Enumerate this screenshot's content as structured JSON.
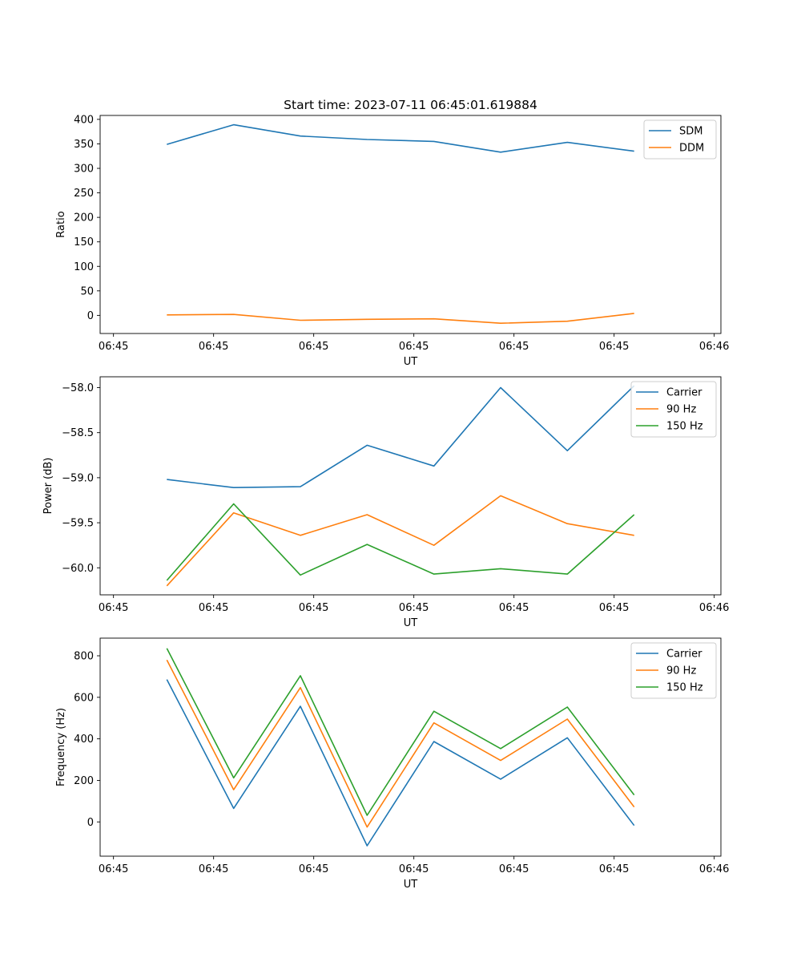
{
  "figure_title": "Start time: 2023-07-11 06:45:01.619884",
  "chart_data": [
    {
      "type": "line",
      "title": "Start time: 2023-07-11 06:45:01.619884",
      "xlabel": "UT",
      "ylabel": "Ratio",
      "x": [
        1,
        2,
        3,
        4,
        5,
        6,
        7,
        8
      ],
      "xlim": [
        0,
        9.3
      ],
      "xticks": [
        0.2,
        1.7,
        3.2,
        4.7,
        6.2,
        7.7,
        9.2
      ],
      "xtick_labels": [
        "06:45",
        "06:45",
        "06:45",
        "06:45",
        "06:45",
        "06:45",
        "06:46"
      ],
      "ylim": [
        -37,
        408
      ],
      "yticks": [
        0,
        50,
        100,
        150,
        200,
        250,
        300,
        350,
        400
      ],
      "ytick_labels": [
        "0",
        "50",
        "100",
        "150",
        "200",
        "250",
        "300",
        "350",
        "400"
      ],
      "legend_position": "top-right",
      "series": [
        {
          "name": "SDM",
          "color": "#1f77b4",
          "values": [
            349,
            389,
            366,
            359,
            355,
            333,
            353,
            335
          ]
        },
        {
          "name": "DDM",
          "color": "#ff7f0e",
          "values": [
            1,
            2,
            -10,
            -8,
            -7,
            -16,
            -12,
            4
          ]
        }
      ]
    },
    {
      "type": "line",
      "title": "",
      "xlabel": "UT",
      "ylabel": "Power (dB)",
      "x": [
        1,
        2,
        3,
        4,
        5,
        6,
        7,
        8
      ],
      "xlim": [
        0,
        9.3
      ],
      "xticks": [
        0.2,
        1.7,
        3.2,
        4.7,
        6.2,
        7.7,
        9.2
      ],
      "xtick_labels": [
        "06:45",
        "06:45",
        "06:45",
        "06:45",
        "06:45",
        "06:45",
        "06:46"
      ],
      "ylim": [
        -60.3,
        -57.88
      ],
      "yticks": [
        -60.0,
        -59.5,
        -59.0,
        -58.5,
        -58.0
      ],
      "ytick_labels": [
        "−60.0",
        "−59.5",
        "−59.0",
        "−58.5",
        "−58.0"
      ],
      "legend_position": "top-right",
      "series": [
        {
          "name": "Carrier",
          "color": "#1f77b4",
          "values": [
            -59.02,
            -59.11,
            -59.1,
            -58.64,
            -58.87,
            -58.0,
            -58.7,
            -57.98
          ]
        },
        {
          "name": "90 Hz",
          "color": "#ff7f0e",
          "values": [
            -60.2,
            -59.39,
            -59.64,
            -59.41,
            -59.75,
            -59.2,
            -59.51,
            -59.64
          ]
        },
        {
          "name": "150 Hz",
          "color": "#2ca02c",
          "values": [
            -60.14,
            -59.29,
            -60.08,
            -59.74,
            -60.07,
            -60.01,
            -60.07,
            -59.41
          ]
        }
      ]
    },
    {
      "type": "line",
      "title": "",
      "xlabel": "UT",
      "ylabel": "Frequency (Hz)",
      "x": [
        1,
        2,
        3,
        4,
        5,
        6,
        7,
        8
      ],
      "xlim": [
        0,
        9.3
      ],
      "xticks": [
        0.2,
        1.7,
        3.2,
        4.7,
        6.2,
        7.7,
        9.2
      ],
      "xtick_labels": [
        "06:45",
        "06:45",
        "06:45",
        "06:45",
        "06:45",
        "06:45",
        "06:46"
      ],
      "ylim": [
        -165,
        885
      ],
      "yticks": [
        0,
        200,
        400,
        600,
        800
      ],
      "ytick_labels": [
        "0",
        "200",
        "400",
        "600",
        "800"
      ],
      "legend_position": "top-right",
      "series": [
        {
          "name": "Carrier",
          "color": "#1f77b4",
          "values": [
            686,
            65,
            557,
            -115,
            387,
            206,
            405,
            -17
          ]
        },
        {
          "name": "90 Hz",
          "color": "#ff7f0e",
          "values": [
            780,
            155,
            647,
            -25,
            477,
            296,
            495,
            72
          ]
        },
        {
          "name": "150 Hz",
          "color": "#2ca02c",
          "values": [
            836,
            212,
            704,
            32,
            533,
            353,
            553,
            130
          ]
        }
      ]
    }
  ]
}
